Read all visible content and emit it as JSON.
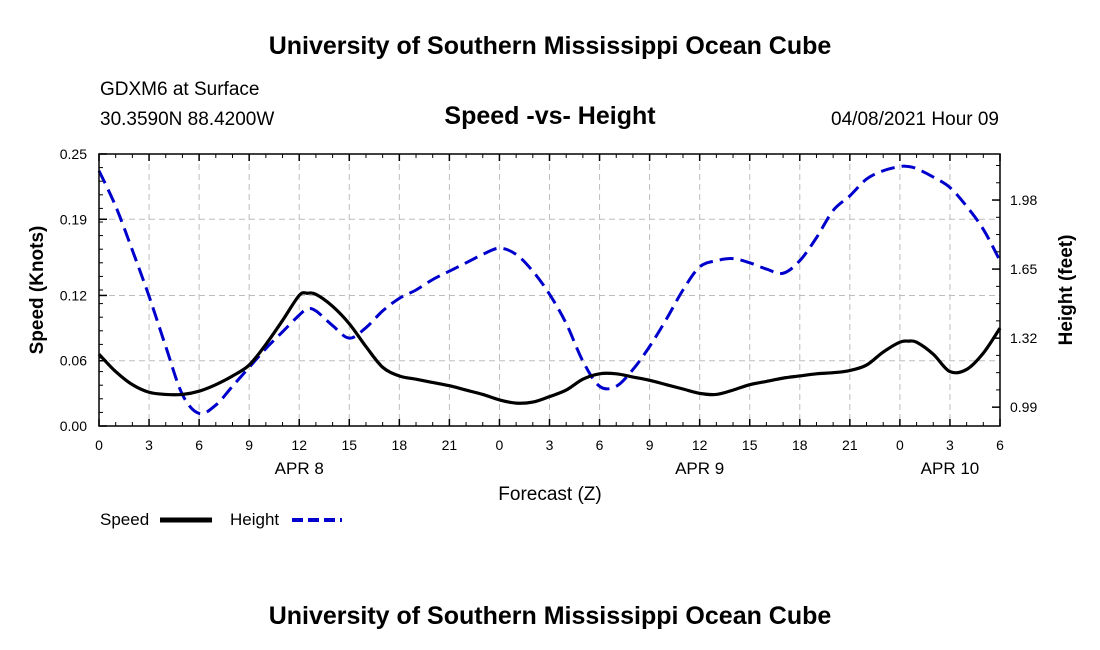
{
  "header": {
    "title": "University of Southern Mississippi Ocean Cube",
    "station": "GDXM6 at Surface",
    "location": "30.3590N  88.4200W",
    "plot_title": "Speed -vs- Height",
    "datetime": "04/08/2021 Hour 09"
  },
  "footer": {
    "title": "University of Southern Mississippi Ocean Cube"
  },
  "legend": {
    "items": [
      {
        "label": "Speed",
        "color": "#000000",
        "dash": "solid"
      },
      {
        "label": "Height",
        "color": "#0000cc",
        "dash": "dashed"
      }
    ]
  },
  "chart_data": {
    "type": "line",
    "title": "Speed -vs- Height",
    "xlabel": "Forecast (Z)",
    "ylabel_left": "Speed (Knots)",
    "ylabel_right": "Height (feet)",
    "x_range": [
      0,
      54
    ],
    "x_ticks": [
      {
        "x": 0,
        "label": "0"
      },
      {
        "x": 3,
        "label": "3"
      },
      {
        "x": 6,
        "label": "6"
      },
      {
        "x": 9,
        "label": "9"
      },
      {
        "x": 12,
        "label": "12"
      },
      {
        "x": 15,
        "label": "15"
      },
      {
        "x": 18,
        "label": "18"
      },
      {
        "x": 21,
        "label": "21"
      },
      {
        "x": 24,
        "label": "0"
      },
      {
        "x": 27,
        "label": "3"
      },
      {
        "x": 30,
        "label": "6"
      },
      {
        "x": 33,
        "label": "9"
      },
      {
        "x": 36,
        "label": "12"
      },
      {
        "x": 39,
        "label": "15"
      },
      {
        "x": 42,
        "label": "18"
      },
      {
        "x": 45,
        "label": "21"
      },
      {
        "x": 48,
        "label": "0"
      },
      {
        "x": 51,
        "label": "3"
      },
      {
        "x": 54,
        "label": "6"
      }
    ],
    "date_labels": [
      {
        "x": 12,
        "label": "APR 8"
      },
      {
        "x": 36,
        "label": "APR 9"
      },
      {
        "x": 51,
        "label": "APR 10"
      }
    ],
    "y_left": {
      "min": 0,
      "max": 0.25,
      "ticks": [
        {
          "v": 0,
          "label": "0.00"
        },
        {
          "v": 0.06,
          "label": "0.06"
        },
        {
          "v": 0.12,
          "label": "0.12"
        },
        {
          "v": 0.19,
          "label": "0.19"
        },
        {
          "v": 0.25,
          "label": "0.25"
        }
      ]
    },
    "y_right": {
      "min": 0.9,
      "max": 2.2,
      "ticks": [
        {
          "v": 0.99,
          "label": "0.99"
        },
        {
          "v": 1.32,
          "label": "1.32"
        },
        {
          "v": 1.65,
          "label": "1.65"
        },
        {
          "v": 1.98,
          "label": "1.98"
        }
      ]
    },
    "series": [
      {
        "name": "Speed",
        "axis": "left",
        "color": "#000000",
        "x": [
          0,
          1,
          2,
          3,
          4,
          5,
          6,
          7,
          8,
          9,
          10,
          11,
          12,
          12.5,
          13,
          14,
          15,
          16,
          17,
          18,
          19,
          20,
          21,
          22,
          23,
          24,
          25,
          26,
          27,
          28,
          29,
          30,
          31,
          32,
          33,
          34,
          35,
          36,
          37,
          38,
          39,
          40,
          41,
          42,
          43,
          44,
          45,
          46,
          47,
          48,
          48.5,
          49,
          50,
          51,
          52,
          53,
          54
        ],
        "values": [
          0.066,
          0.05,
          0.038,
          0.031,
          0.029,
          0.029,
          0.032,
          0.038,
          0.046,
          0.056,
          0.075,
          0.097,
          0.12,
          0.122,
          0.121,
          0.11,
          0.094,
          0.073,
          0.054,
          0.046,
          0.043,
          0.04,
          0.037,
          0.033,
          0.029,
          0.024,
          0.021,
          0.022,
          0.027,
          0.033,
          0.043,
          0.048,
          0.048,
          0.045,
          0.042,
          0.038,
          0.034,
          0.03,
          0.029,
          0.033,
          0.038,
          0.041,
          0.044,
          0.046,
          0.048,
          0.049,
          0.051,
          0.056,
          0.068,
          0.077,
          0.078,
          0.077,
          0.066,
          0.05,
          0.052,
          0.067,
          0.09
        ]
      },
      {
        "name": "Height",
        "axis": "right",
        "color": "#0000cc",
        "x": [
          0,
          1,
          2,
          3,
          4,
          5,
          6,
          7,
          8,
          9,
          10,
          11,
          12,
          12.5,
          13,
          14,
          15,
          16,
          17,
          18,
          19,
          20,
          21,
          22,
          23,
          24,
          25,
          26,
          27,
          28,
          29,
          30,
          31,
          32,
          33,
          34,
          35,
          36,
          37,
          38,
          39,
          40,
          41,
          42,
          43,
          44,
          45,
          46,
          47,
          48,
          48.5,
          49,
          50,
          51,
          52,
          53,
          54
        ],
        "values": [
          2.12,
          1.95,
          1.74,
          1.52,
          1.28,
          1.05,
          0.96,
          1.0,
          1.09,
          1.18,
          1.27,
          1.35,
          1.43,
          1.46,
          1.45,
          1.38,
          1.32,
          1.37,
          1.45,
          1.51,
          1.55,
          1.6,
          1.64,
          1.68,
          1.72,
          1.75,
          1.72,
          1.64,
          1.53,
          1.39,
          1.21,
          1.09,
          1.09,
          1.17,
          1.28,
          1.41,
          1.55,
          1.66,
          1.69,
          1.7,
          1.68,
          1.65,
          1.63,
          1.69,
          1.8,
          1.93,
          2.0,
          2.08,
          2.12,
          2.14,
          2.14,
          2.13,
          2.09,
          2.04,
          1.95,
          1.84,
          1.69
        ]
      }
    ]
  }
}
